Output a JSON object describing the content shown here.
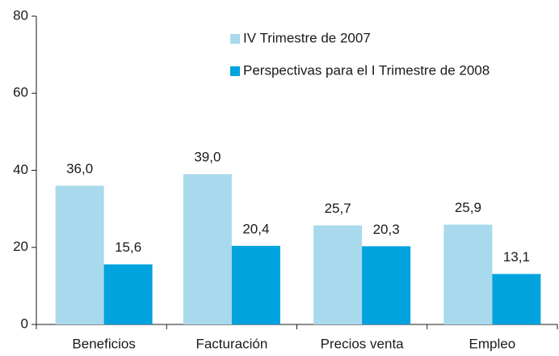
{
  "chart_data": {
    "type": "bar",
    "categories": [
      "Beneficios",
      "Facturación",
      "Precios venta",
      "Empleo"
    ],
    "series": [
      {
        "name": "IV Trimestre de 2007",
        "color": "#a9d9ec",
        "values": [
          36.0,
          39.0,
          25.7,
          25.9
        ],
        "value_labels": [
          "36,0",
          "39,0",
          "25,7",
          "25,9"
        ]
      },
      {
        "name": "Perspectivas para el I Trimestre de 2008",
        "color": "#00a3de",
        "values": [
          15.6,
          20.4,
          20.3,
          13.1
        ],
        "value_labels": [
          "15,6",
          "20,4",
          "20,3",
          "13,1"
        ]
      }
    ],
    "ylim": [
      0,
      80
    ],
    "yticks": [
      0,
      20,
      40,
      60,
      80
    ],
    "legend": "upper right"
  }
}
